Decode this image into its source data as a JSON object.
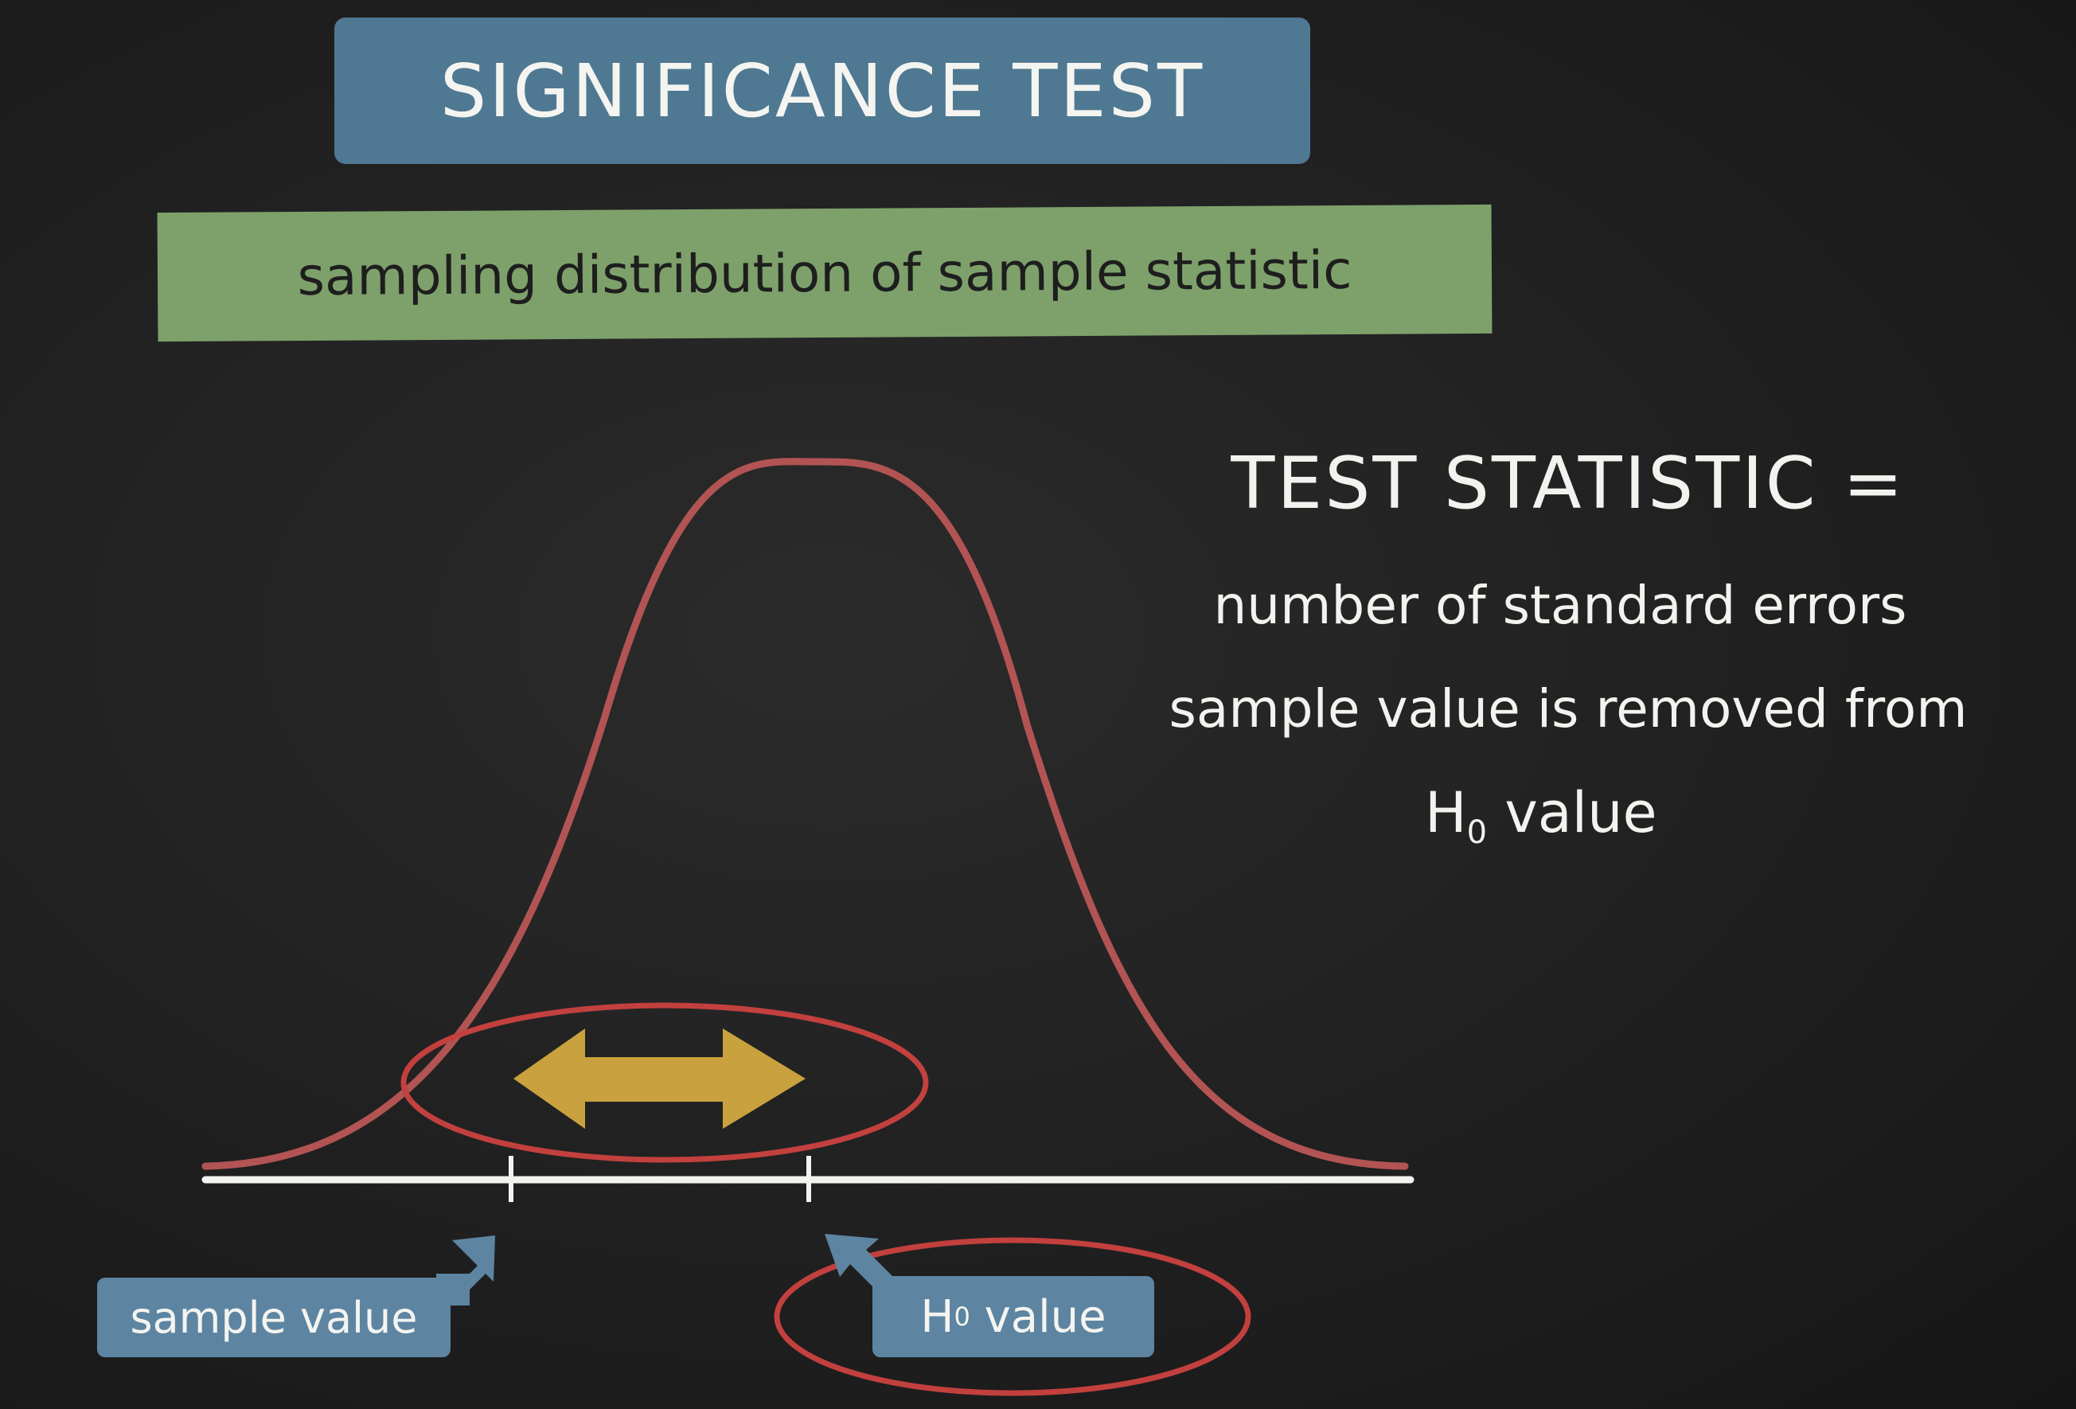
{
  "title": "SIGNIFICANCE TEST",
  "subtitle": "sampling distribution of sample statistic",
  "test_statistic": {
    "heading": "TEST STATISTIC =",
    "line1": "number of standard errors",
    "line2": "sample value is removed from",
    "line3_symbol": "H",
    "line3_subscript": "0",
    "line3_text": "value"
  },
  "labels": {
    "sample_value": "sample value",
    "h0_symbol": "H",
    "h0_subscript": "0",
    "h0_text": "value"
  },
  "colors": {
    "title_box": "#4f7892",
    "subtitle_box": "#7ea16b",
    "curve": "#b25453",
    "ellipse": "#c2403e",
    "arrow": "#c9a13e",
    "label_box": "#5d85a2",
    "axis": "#f2f2ee"
  }
}
